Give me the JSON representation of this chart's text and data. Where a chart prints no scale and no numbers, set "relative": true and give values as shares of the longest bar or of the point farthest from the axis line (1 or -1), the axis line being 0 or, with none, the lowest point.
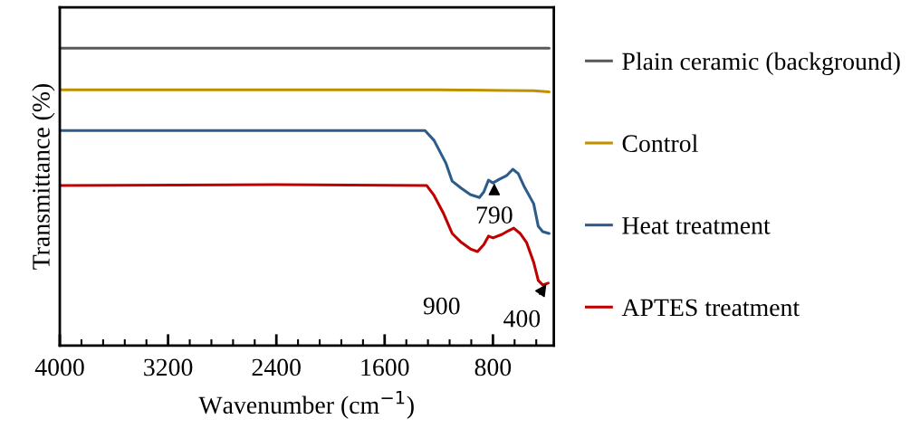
{
  "chart_data": {
    "type": "line",
    "relative": true,
    "xlabel": "Wavenumber (cm$^{−1}$)",
    "ylabel": "Transmittance (%)",
    "xlim": [
      4000,
      350
    ],
    "xticks": [
      4000,
      3200,
      2400,
      1600,
      800
    ],
    "legend": "right",
    "grid": false,
    "tick_labels": "x",
    "series": [
      {
        "name": "Plain ceramic (background)",
        "color": "#595959",
        "x": [
          4000,
          2400,
          1200,
          385
        ],
        "values": [
          1.0,
          1.0,
          1.0,
          1.0
        ]
      },
      {
        "name": "Control",
        "color": "#bf9000",
        "x": [
          4000,
          2400,
          1200,
          967,
          700,
          500,
          385
        ],
        "values": [
          0.86,
          0.86,
          0.86,
          0.859,
          0.858,
          0.857,
          0.853
        ]
      },
      {
        "name": "Heat treatment",
        "color": "#2e5c8a",
        "x": [
          4000,
          2400,
          1302,
          1235,
          1148,
          1101,
          1034,
          967,
          900,
          867,
          833,
          800,
          753,
          700,
          653,
          613,
          566,
          499,
          465,
          432,
          385
        ],
        "values": [
          0.723,
          0.723,
          0.723,
          0.69,
          0.614,
          0.553,
          0.529,
          0.508,
          0.498,
          0.517,
          0.556,
          0.547,
          0.559,
          0.571,
          0.593,
          0.578,
          0.532,
          0.477,
          0.401,
          0.383,
          0.377
        ]
      },
      {
        "name": "APTES treatment",
        "color": "#c00000",
        "x": [
          4000,
          2400,
          1289,
          1235,
          1168,
          1101,
          1034,
          967,
          914,
          867,
          833,
          800,
          733,
          686,
          646,
          599,
          552,
          499,
          465,
          432,
          392
        ],
        "values": [
          0.538,
          0.541,
          0.538,
          0.505,
          0.447,
          0.377,
          0.347,
          0.325,
          0.316,
          0.34,
          0.368,
          0.362,
          0.374,
          0.386,
          0.395,
          0.377,
          0.347,
          0.28,
          0.219,
          0.204,
          0.21
        ]
      }
    ],
    "annotations": [
      {
        "text": "790",
        "x": 790,
        "y": 0.55
      },
      {
        "text": "900",
        "x": 900,
        "y": 0.316
      },
      {
        "text": "400",
        "x": 400,
        "y": 0.21
      }
    ]
  }
}
